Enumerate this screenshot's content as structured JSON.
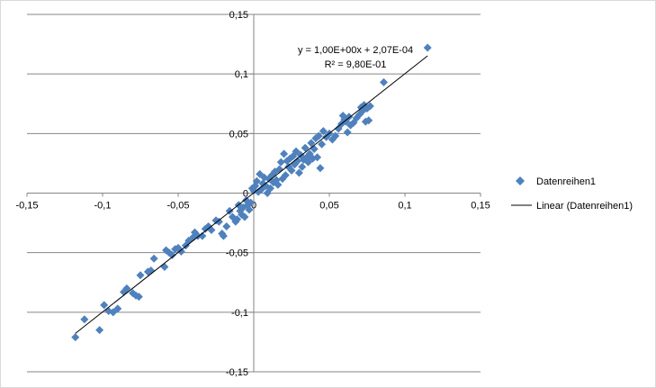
{
  "chart_data": {
    "type": "scatter",
    "title": "",
    "xlabel": "",
    "ylabel": "",
    "xlim": [
      -0.15,
      0.15
    ],
    "ylim": [
      -0.15,
      0.15
    ],
    "x_ticks": [
      "-0,15",
      "-0,1",
      "-0,05",
      "0",
      "0,05",
      "0,1",
      "0,15"
    ],
    "y_ticks": [
      "0,15",
      "0,1",
      "0,05",
      "0",
      "-0,05",
      "-0,1",
      "-0,15"
    ],
    "grid": "horizontal",
    "legend_position": "right",
    "marker_color": "#4f81bd",
    "series": [
      {
        "name": "Datenreihen1",
        "marker": "diamond",
        "points": [
          [
            -0.118,
            -0.121
          ],
          [
            -0.112,
            -0.106
          ],
          [
            -0.102,
            -0.115
          ],
          [
            -0.099,
            -0.094
          ],
          [
            -0.096,
            -0.099
          ],
          [
            -0.093,
            -0.1
          ],
          [
            -0.09,
            -0.097
          ],
          [
            -0.086,
            -0.083
          ],
          [
            -0.084,
            -0.08
          ],
          [
            -0.08,
            -0.084
          ],
          [
            -0.078,
            -0.086
          ],
          [
            -0.076,
            -0.087
          ],
          [
            -0.075,
            -0.069
          ],
          [
            -0.07,
            -0.066
          ],
          [
            -0.068,
            -0.065
          ],
          [
            -0.066,
            -0.055
          ],
          [
            -0.059,
            -0.062
          ],
          [
            -0.058,
            -0.048
          ],
          [
            -0.056,
            -0.05
          ],
          [
            -0.054,
            -0.052
          ],
          [
            -0.052,
            -0.047
          ],
          [
            -0.05,
            -0.046
          ],
          [
            -0.048,
            -0.049
          ],
          [
            -0.045,
            -0.044
          ],
          [
            -0.043,
            -0.04
          ],
          [
            -0.04,
            -0.037
          ],
          [
            -0.039,
            -0.033
          ],
          [
            -0.037,
            -0.036
          ],
          [
            -0.034,
            -0.036
          ],
          [
            -0.032,
            -0.03
          ],
          [
            -0.03,
            -0.028
          ],
          [
            -0.028,
            -0.031
          ],
          [
            -0.025,
            -0.023
          ],
          [
            -0.023,
            -0.024
          ],
          [
            -0.021,
            -0.034
          ],
          [
            -0.02,
            -0.036
          ],
          [
            -0.018,
            -0.028
          ],
          [
            -0.016,
            -0.015
          ],
          [
            -0.014,
            -0.02
          ],
          [
            -0.012,
            -0.024
          ],
          [
            -0.011,
            -0.022
          ],
          [
            -0.01,
            -0.01
          ],
          [
            -0.009,
            -0.015
          ],
          [
            -0.008,
            -0.018
          ],
          [
            -0.007,
            -0.012
          ],
          [
            -0.006,
            -0.02
          ],
          [
            -0.005,
            -0.006
          ],
          [
            -0.004,
            -0.01
          ],
          [
            -0.003,
            -0.014
          ],
          [
            -0.002,
            -0.008
          ],
          [
            -0.001,
            0.004
          ],
          [
            0.0,
            0.002
          ],
          [
            0.001,
            0.006
          ],
          [
            0.002,
            0.01
          ],
          [
            0.003,
            0.001
          ],
          [
            0.004,
            0.016
          ],
          [
            0.005,
            0.003
          ],
          [
            0.006,
            0.008
          ],
          [
            0.007,
            0.013
          ],
          [
            0.008,
            0.006
          ],
          [
            0.009,
            0.0
          ],
          [
            0.01,
            0.012
          ],
          [
            0.011,
            0.004
          ],
          [
            0.012,
            0.015
          ],
          [
            0.013,
            0.009
          ],
          [
            0.014,
            0.018
          ],
          [
            0.015,
            0.011
          ],
          [
            0.016,
            0.007
          ],
          [
            0.017,
            0.02
          ],
          [
            0.018,
            0.026
          ],
          [
            0.019,
            0.012
          ],
          [
            0.02,
            0.033
          ],
          [
            0.021,
            0.015
          ],
          [
            0.022,
            0.027
          ],
          [
            0.023,
            0.022
          ],
          [
            0.024,
            0.029
          ],
          [
            0.025,
            0.019
          ],
          [
            0.026,
            0.031
          ],
          [
            0.027,
            0.024
          ],
          [
            0.028,
            0.035
          ],
          [
            0.029,
            0.027
          ],
          [
            0.03,
            0.017
          ],
          [
            0.031,
            0.032
          ],
          [
            0.032,
            0.022
          ],
          [
            0.033,
            0.028
          ],
          [
            0.034,
            0.038
          ],
          [
            0.035,
            0.03
          ],
          [
            0.036,
            0.026
          ],
          [
            0.037,
            0.033
          ],
          [
            0.038,
            0.042
          ],
          [
            0.039,
            0.029
          ],
          [
            0.04,
            0.037
          ],
          [
            0.041,
            0.046
          ],
          [
            0.042,
            0.03
          ],
          [
            0.043,
            0.048
          ],
          [
            0.044,
            0.021
          ],
          [
            0.045,
            0.041
          ],
          [
            0.046,
            0.052
          ],
          [
            0.048,
            0.047
          ],
          [
            0.05,
            0.05
          ],
          [
            0.052,
            0.045
          ],
          [
            0.054,
            0.048
          ],
          [
            0.056,
            0.054
          ],
          [
            0.058,
            0.058
          ],
          [
            0.059,
            0.065
          ],
          [
            0.06,
            0.062
          ],
          [
            0.061,
            0.06
          ],
          [
            0.062,
            0.051
          ],
          [
            0.063,
            0.064
          ],
          [
            0.064,
            0.057
          ],
          [
            0.066,
            0.059
          ],
          [
            0.068,
            0.063
          ],
          [
            0.07,
            0.066
          ],
          [
            0.071,
            0.072
          ],
          [
            0.072,
            0.069
          ],
          [
            0.073,
            0.074
          ],
          [
            0.074,
            0.06
          ],
          [
            0.075,
            0.071
          ],
          [
            0.076,
            0.061
          ],
          [
            0.077,
            0.073
          ],
          [
            0.086,
            0.093
          ],
          [
            0.115,
            0.122
          ]
        ]
      }
    ],
    "trendline": {
      "name": "Linear (Datenreihen1)",
      "color": "#000000",
      "slope": 1.0,
      "intercept": 0.000207,
      "x_range": [
        -0.118,
        0.115
      ],
      "equation_label": "y = 1,00E+00x + 2,07E-04",
      "r2_label": "R² = 9,80E-01"
    }
  }
}
